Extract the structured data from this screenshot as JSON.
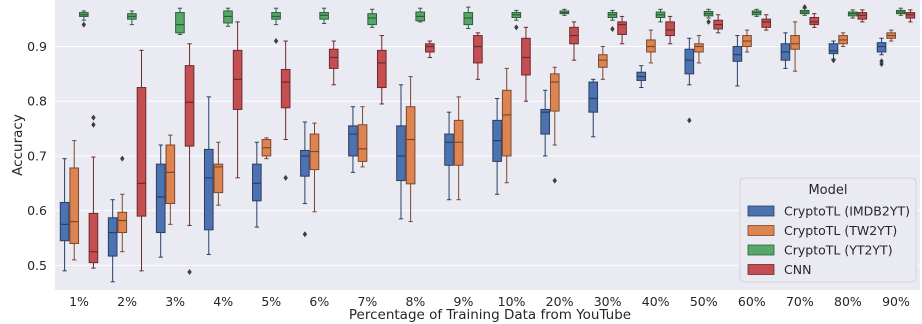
{
  "chart_data": {
    "type": "box",
    "xlabel": "Percentage of Training Data from YouTube",
    "ylabel": "Accuracy",
    "ylim": [
      0.455,
      0.985
    ],
    "yticks": [
      0.5,
      0.6,
      0.7,
      0.8,
      0.9
    ],
    "grid": true,
    "legend": {
      "title": "Model",
      "placement": "lower-right"
    },
    "categories": [
      "1%",
      "2%",
      "3%",
      "4%",
      "5%",
      "6%",
      "7%",
      "8%",
      "9%",
      "10%",
      "20%",
      "30%",
      "40%",
      "50%",
      "60%",
      "70%",
      "80%",
      "90%"
    ],
    "series": [
      {
        "name": "CryptoTL (IMDB2YT)",
        "color": "#4c72b0",
        "boxes": [
          {
            "min": 0.49,
            "q1": 0.545,
            "med": 0.575,
            "q3": 0.615,
            "max": 0.695,
            "outliers": []
          },
          {
            "min": 0.47,
            "q1": 0.517,
            "med": 0.56,
            "q3": 0.587,
            "max": 0.62,
            "outliers": []
          },
          {
            "min": 0.515,
            "q1": 0.56,
            "med": 0.625,
            "q3": 0.685,
            "max": 0.72,
            "outliers": []
          },
          {
            "min": 0.52,
            "q1": 0.565,
            "med": 0.66,
            "q3": 0.712,
            "max": 0.808,
            "outliers": []
          },
          {
            "min": 0.57,
            "q1": 0.618,
            "med": 0.65,
            "q3": 0.685,
            "max": 0.725,
            "outliers": []
          },
          {
            "min": 0.613,
            "q1": 0.663,
            "med": 0.7,
            "q3": 0.71,
            "max": 0.762,
            "outliers": [
              0.557
            ]
          },
          {
            "min": 0.67,
            "q1": 0.7,
            "med": 0.74,
            "q3": 0.755,
            "max": 0.79,
            "outliers": []
          },
          {
            "min": 0.585,
            "q1": 0.655,
            "med": 0.7,
            "q3": 0.755,
            "max": 0.83,
            "outliers": []
          },
          {
            "min": 0.62,
            "q1": 0.683,
            "med": 0.725,
            "q3": 0.74,
            "max": 0.78,
            "outliers": []
          },
          {
            "min": 0.63,
            "q1": 0.69,
            "med": 0.728,
            "q3": 0.765,
            "max": 0.805,
            "outliers": []
          },
          {
            "min": 0.7,
            "q1": 0.74,
            "med": 0.78,
            "q3": 0.785,
            "max": 0.82,
            "outliers": []
          },
          {
            "min": 0.735,
            "q1": 0.78,
            "med": 0.805,
            "q3": 0.835,
            "max": 0.84,
            "outliers": []
          },
          {
            "min": 0.825,
            "q1": 0.838,
            "med": 0.845,
            "q3": 0.853,
            "max": 0.865,
            "outliers": []
          },
          {
            "min": 0.83,
            "q1": 0.85,
            "med": 0.875,
            "q3": 0.895,
            "max": 0.915,
            "outliers": [
              0.765
            ]
          },
          {
            "min": 0.828,
            "q1": 0.873,
            "med": 0.885,
            "q3": 0.9,
            "max": 0.92,
            "outliers": []
          },
          {
            "min": 0.86,
            "q1": 0.875,
            "med": 0.89,
            "q3": 0.905,
            "max": 0.925,
            "outliers": []
          },
          {
            "min": 0.877,
            "q1": 0.887,
            "med": 0.892,
            "q3": 0.905,
            "max": 0.91,
            "outliers": [
              0.875
            ]
          },
          {
            "min": 0.885,
            "q1": 0.89,
            "med": 0.9,
            "q3": 0.907,
            "max": 0.915,
            "outliers": [
              0.868,
              0.873
            ]
          }
        ]
      },
      {
        "name": "CryptoTL (TW2YT)",
        "color": "#dd8452",
        "boxes": [
          {
            "min": 0.51,
            "q1": 0.54,
            "med": 0.58,
            "q3": 0.678,
            "max": 0.728,
            "outliers": []
          },
          {
            "min": 0.525,
            "q1": 0.56,
            "med": 0.582,
            "q3": 0.597,
            "max": 0.63,
            "outliers": [
              0.695
            ]
          },
          {
            "min": 0.575,
            "q1": 0.613,
            "med": 0.67,
            "q3": 0.72,
            "max": 0.738,
            "outliers": []
          },
          {
            "min": 0.61,
            "q1": 0.633,
            "med": 0.68,
            "q3": 0.685,
            "max": 0.725,
            "outliers": []
          },
          {
            "min": 0.695,
            "q1": 0.7,
            "med": 0.715,
            "q3": 0.73,
            "max": 0.733,
            "outliers": []
          },
          {
            "min": 0.598,
            "q1": 0.675,
            "med": 0.708,
            "q3": 0.74,
            "max": 0.76,
            "outliers": []
          },
          {
            "min": 0.68,
            "q1": 0.69,
            "med": 0.713,
            "q3": 0.757,
            "max": 0.79,
            "outliers": []
          },
          {
            "min": 0.58,
            "q1": 0.649,
            "med": 0.73,
            "q3": 0.79,
            "max": 0.845,
            "outliers": []
          },
          {
            "min": 0.62,
            "q1": 0.683,
            "med": 0.725,
            "q3": 0.765,
            "max": 0.808,
            "outliers": []
          },
          {
            "min": 0.651,
            "q1": 0.7,
            "med": 0.775,
            "q3": 0.82,
            "max": 0.86,
            "outliers": []
          },
          {
            "min": 0.72,
            "q1": 0.782,
            "med": 0.835,
            "q3": 0.85,
            "max": 0.862,
            "outliers": [
              0.655
            ]
          },
          {
            "min": 0.84,
            "q1": 0.862,
            "med": 0.875,
            "q3": 0.885,
            "max": 0.9,
            "outliers": []
          },
          {
            "min": 0.87,
            "q1": 0.89,
            "med": 0.9,
            "q3": 0.912,
            "max": 0.93,
            "outliers": []
          },
          {
            "min": 0.87,
            "q1": 0.89,
            "med": 0.9,
            "q3": 0.905,
            "max": 0.92,
            "outliers": []
          },
          {
            "min": 0.89,
            "q1": 0.9,
            "med": 0.91,
            "q3": 0.92,
            "max": 0.93,
            "outliers": []
          },
          {
            "min": 0.855,
            "q1": 0.895,
            "med": 0.905,
            "q3": 0.92,
            "max": 0.945,
            "outliers": []
          },
          {
            "min": 0.9,
            "q1": 0.905,
            "med": 0.912,
            "q3": 0.92,
            "max": 0.925,
            "outliers": []
          },
          {
            "min": 0.91,
            "q1": 0.915,
            "med": 0.92,
            "q3": 0.925,
            "max": 0.93,
            "outliers": []
          }
        ]
      },
      {
        "name": "CryptoTL (YT2YT)",
        "color": "#55a868",
        "boxes": [
          {
            "min": 0.948,
            "q1": 0.955,
            "med": 0.958,
            "q3": 0.962,
            "max": 0.965,
            "outliers": [
              0.94
            ]
          },
          {
            "min": 0.94,
            "q1": 0.95,
            "med": 0.955,
            "q3": 0.96,
            "max": 0.965,
            "outliers": []
          },
          {
            "min": 0.922,
            "q1": 0.925,
            "med": 0.94,
            "q3": 0.962,
            "max": 0.97,
            "outliers": []
          },
          {
            "min": 0.937,
            "q1": 0.943,
            "med": 0.955,
            "q3": 0.965,
            "max": 0.97,
            "outliers": []
          },
          {
            "min": 0.94,
            "q1": 0.95,
            "med": 0.955,
            "q3": 0.962,
            "max": 0.97,
            "outliers": [
              0.91
            ]
          },
          {
            "min": 0.942,
            "q1": 0.95,
            "med": 0.957,
            "q3": 0.962,
            "max": 0.97,
            "outliers": []
          },
          {
            "min": 0.935,
            "q1": 0.94,
            "med": 0.952,
            "q3": 0.96,
            "max": 0.968,
            "outliers": []
          },
          {
            "min": 0.945,
            "q1": 0.947,
            "med": 0.955,
            "q3": 0.963,
            "max": 0.97,
            "outliers": []
          },
          {
            "min": 0.933,
            "q1": 0.94,
            "med": 0.952,
            "q3": 0.962,
            "max": 0.972,
            "outliers": []
          },
          {
            "min": 0.948,
            "q1": 0.953,
            "med": 0.958,
            "q3": 0.962,
            "max": 0.966,
            "outliers": [
              0.935
            ]
          },
          {
            "min": 0.957,
            "q1": 0.96,
            "med": 0.962,
            "q3": 0.965,
            "max": 0.968,
            "outliers": []
          },
          {
            "min": 0.948,
            "q1": 0.953,
            "med": 0.958,
            "q3": 0.962,
            "max": 0.966,
            "outliers": [
              0.932
            ]
          },
          {
            "min": 0.945,
            "q1": 0.953,
            "med": 0.958,
            "q3": 0.963,
            "max": 0.968,
            "outliers": []
          },
          {
            "min": 0.952,
            "q1": 0.956,
            "med": 0.96,
            "q3": 0.964,
            "max": 0.968,
            "outliers": [
              0.945
            ]
          },
          {
            "min": 0.955,
            "q1": 0.958,
            "med": 0.962,
            "q3": 0.965,
            "max": 0.968,
            "outliers": []
          },
          {
            "min": 0.957,
            "q1": 0.96,
            "med": 0.963,
            "q3": 0.966,
            "max": 0.97,
            "outliers": [
              0.972
            ]
          },
          {
            "min": 0.952,
            "q1": 0.956,
            "med": 0.96,
            "q3": 0.963,
            "max": 0.967,
            "outliers": []
          },
          {
            "min": 0.957,
            "q1": 0.96,
            "med": 0.963,
            "q3": 0.966,
            "max": 0.97,
            "outliers": []
          }
        ]
      },
      {
        "name": "CNN",
        "color": "#c44e52",
        "boxes": [
          {
            "min": 0.495,
            "q1": 0.505,
            "med": 0.525,
            "q3": 0.595,
            "max": 0.698,
            "outliers": [
              0.77,
              0.757
            ]
          },
          {
            "min": 0.49,
            "q1": 0.59,
            "med": 0.65,
            "q3": 0.825,
            "max": 0.893,
            "outliers": []
          },
          {
            "min": 0.573,
            "q1": 0.718,
            "med": 0.798,
            "q3": 0.865,
            "max": 0.905,
            "outliers": [
              0.488
            ]
          },
          {
            "min": 0.66,
            "q1": 0.785,
            "med": 0.84,
            "q3": 0.893,
            "max": 0.945,
            "outliers": []
          },
          {
            "min": 0.73,
            "q1": 0.788,
            "med": 0.835,
            "q3": 0.858,
            "max": 0.91,
            "outliers": [
              0.66
            ]
          },
          {
            "min": 0.83,
            "q1": 0.86,
            "med": 0.88,
            "q3": 0.895,
            "max": 0.91,
            "outliers": []
          },
          {
            "min": 0.795,
            "q1": 0.825,
            "med": 0.87,
            "q3": 0.893,
            "max": 0.92,
            "outliers": []
          },
          {
            "min": 0.88,
            "q1": 0.89,
            "med": 0.9,
            "q3": 0.905,
            "max": 0.91,
            "outliers": []
          },
          {
            "min": 0.84,
            "q1": 0.87,
            "med": 0.9,
            "q3": 0.92,
            "max": 0.925,
            "outliers": []
          },
          {
            "min": 0.8,
            "q1": 0.848,
            "med": 0.88,
            "q3": 0.915,
            "max": 0.935,
            "outliers": []
          },
          {
            "min": 0.875,
            "q1": 0.905,
            "med": 0.92,
            "q3": 0.935,
            "max": 0.945,
            "outliers": []
          },
          {
            "min": 0.905,
            "q1": 0.922,
            "med": 0.94,
            "q3": 0.945,
            "max": 0.955,
            "outliers": []
          },
          {
            "min": 0.905,
            "q1": 0.92,
            "med": 0.93,
            "q3": 0.945,
            "max": 0.955,
            "outliers": []
          },
          {
            "min": 0.925,
            "q1": 0.932,
            "med": 0.94,
            "q3": 0.948,
            "max": 0.958,
            "outliers": []
          },
          {
            "min": 0.93,
            "q1": 0.935,
            "med": 0.945,
            "q3": 0.95,
            "max": 0.958,
            "outliers": []
          },
          {
            "min": 0.935,
            "q1": 0.94,
            "med": 0.945,
            "q3": 0.953,
            "max": 0.96,
            "outliers": []
          },
          {
            "min": 0.945,
            "q1": 0.95,
            "med": 0.957,
            "q3": 0.962,
            "max": 0.967,
            "outliers": []
          },
          {
            "min": 0.945,
            "q1": 0.952,
            "med": 0.958,
            "q3": 0.962,
            "max": 0.967,
            "outliers": []
          }
        ]
      }
    ]
  }
}
